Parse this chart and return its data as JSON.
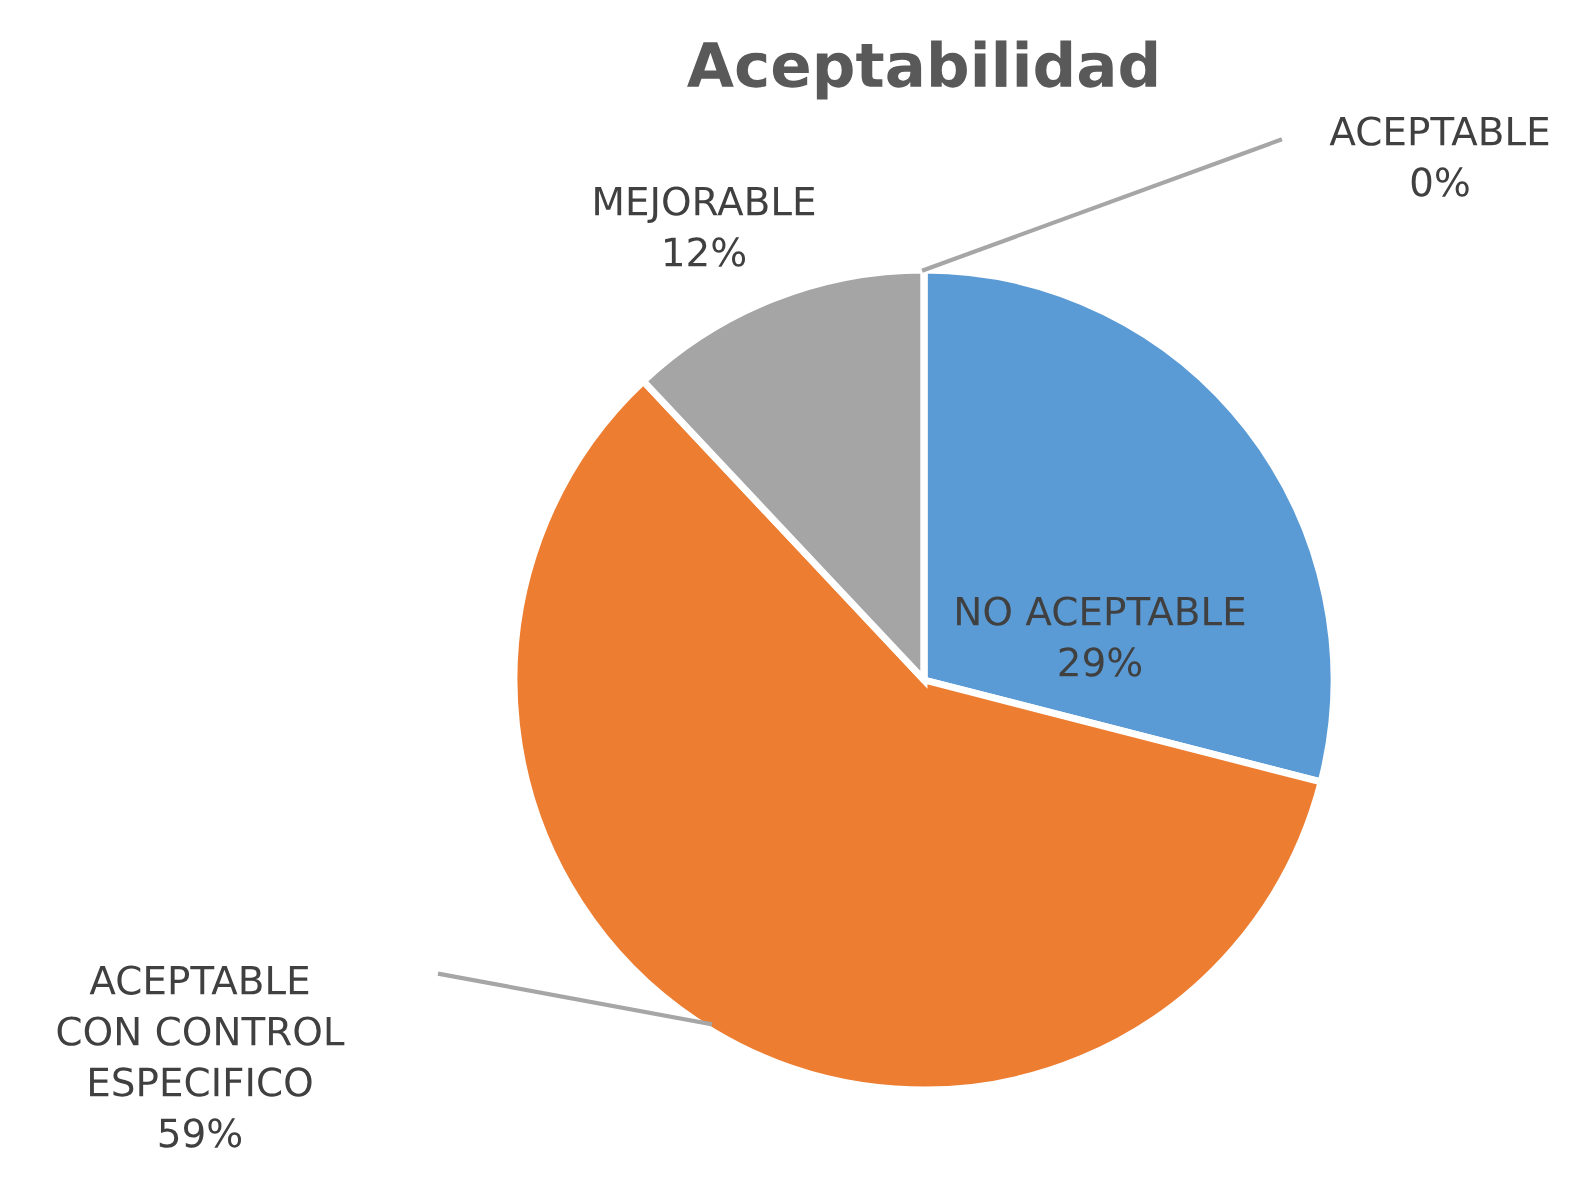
{
  "chart_data": {
    "type": "pie",
    "title": "Aceptabilidad",
    "categories": [
      "NO ACEPTABLE",
      "ACEPTABLE\nCON CONTROL\nESPECIFICO",
      "MEJORABLE",
      "ACEPTABLE"
    ],
    "values": [
      29,
      59,
      12,
      0
    ],
    "value_labels": [
      "29%",
      "59%",
      "12%",
      "0%"
    ],
    "colors": [
      "#5b9bd5",
      "#ed7d31",
      "#a5a5a5",
      "#ffc000"
    ],
    "legend": false
  }
}
